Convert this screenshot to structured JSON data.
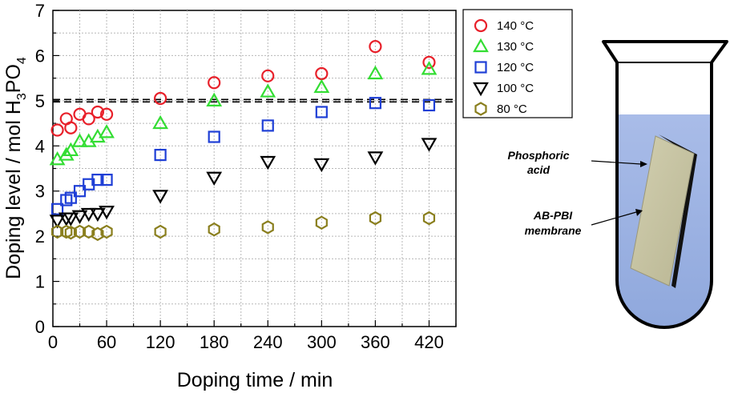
{
  "chart_data": {
    "type": "scatter",
    "xlabel": "Doping time / min",
    "ylabel_main": "Doping level / mol H",
    "ylabel_sub1": "3",
    "ylabel_mid": "PO",
    "ylabel_sub2": "4",
    "xlim": [
      0,
      450
    ],
    "ylim": [
      0,
      7
    ],
    "xticks": [
      0,
      60,
      120,
      180,
      240,
      300,
      360,
      420
    ],
    "yticks": [
      0,
      1,
      2,
      3,
      4,
      5,
      6,
      7
    ],
    "grid": true,
    "reference_line_y": 5,
    "legend_position": "right",
    "series": [
      {
        "name": "140 °C",
        "marker": "circle",
        "color": "#e8202a",
        "x": [
          5,
          15,
          20,
          30,
          40,
          50,
          60,
          120,
          180,
          240,
          300,
          360,
          420
        ],
        "y": [
          4.35,
          4.6,
          4.4,
          4.7,
          4.6,
          4.75,
          4.7,
          5.05,
          5.4,
          5.55,
          5.6,
          6.2,
          5.85
        ]
      },
      {
        "name": "130 °C",
        "marker": "triangle-up",
        "color": "#33dd33",
        "x": [
          5,
          15,
          20,
          30,
          40,
          50,
          60,
          120,
          180,
          240,
          300,
          360,
          420
        ],
        "y": [
          3.7,
          3.8,
          3.9,
          4.1,
          4.1,
          4.2,
          4.3,
          4.5,
          5.0,
          5.2,
          5.3,
          5.6,
          5.7
        ]
      },
      {
        "name": "120 °C",
        "marker": "square",
        "color": "#1f3fd6",
        "x": [
          5,
          15,
          20,
          30,
          40,
          50,
          60,
          120,
          180,
          240,
          300,
          360,
          420
        ],
        "y": [
          2.6,
          2.8,
          2.85,
          3.0,
          3.15,
          3.25,
          3.25,
          3.8,
          4.2,
          4.45,
          4.75,
          4.95,
          4.9
        ]
      },
      {
        "name": "100 °C",
        "marker": "triangle-down",
        "color": "#000000",
        "x": [
          5,
          15,
          20,
          30,
          40,
          50,
          60,
          120,
          180,
          240,
          300,
          360,
          420
        ],
        "y": [
          2.35,
          2.4,
          2.4,
          2.45,
          2.5,
          2.5,
          2.55,
          2.9,
          3.3,
          3.65,
          3.6,
          3.75,
          4.05
        ]
      },
      {
        "name": "80 °C",
        "marker": "hexagon",
        "color": "#8a7f1e",
        "x": [
          5,
          15,
          20,
          30,
          40,
          50,
          60,
          120,
          180,
          240,
          300,
          360,
          420
        ],
        "y": [
          2.1,
          2.1,
          2.08,
          2.1,
          2.1,
          2.05,
          2.1,
          2.1,
          2.15,
          2.2,
          2.3,
          2.4,
          2.4
        ]
      }
    ]
  },
  "illustration": {
    "label_acid_line1": "Phosphoric",
    "label_acid_line2": "acid",
    "label_membrane_line1": "AB-PBI",
    "label_membrane_line2": "membrane",
    "liquid_color": "#a8bee6",
    "membrane_color": "#c9c6a6"
  }
}
